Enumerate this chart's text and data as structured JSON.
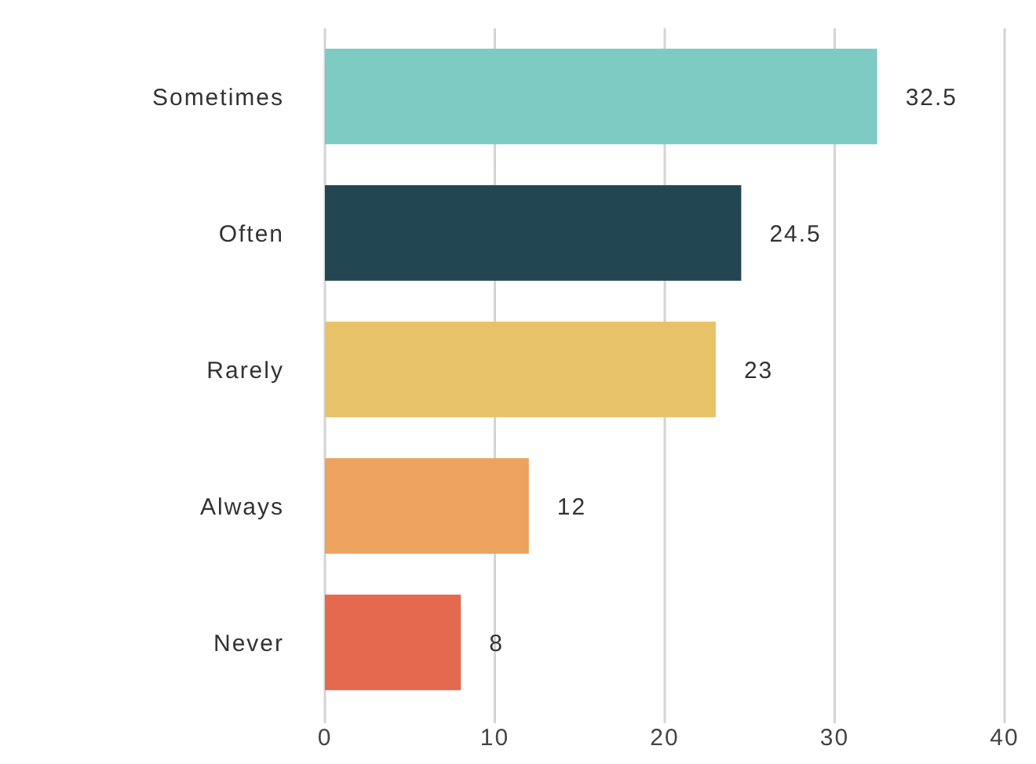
{
  "chart_data": {
    "type": "bar",
    "orientation": "horizontal",
    "categories": [
      "Sometimes",
      "Often",
      "Rarely",
      "Always",
      "Never"
    ],
    "values": [
      32.5,
      24.5,
      23,
      12,
      8
    ],
    "colors": [
      "#7ecbc4",
      "#234653",
      "#e8c268",
      "#eea25f",
      "#e4694e"
    ],
    "xlim": [
      0,
      40
    ],
    "xticks": [
      0,
      10,
      20,
      30,
      40
    ],
    "grid": "x",
    "data_labels": true
  }
}
